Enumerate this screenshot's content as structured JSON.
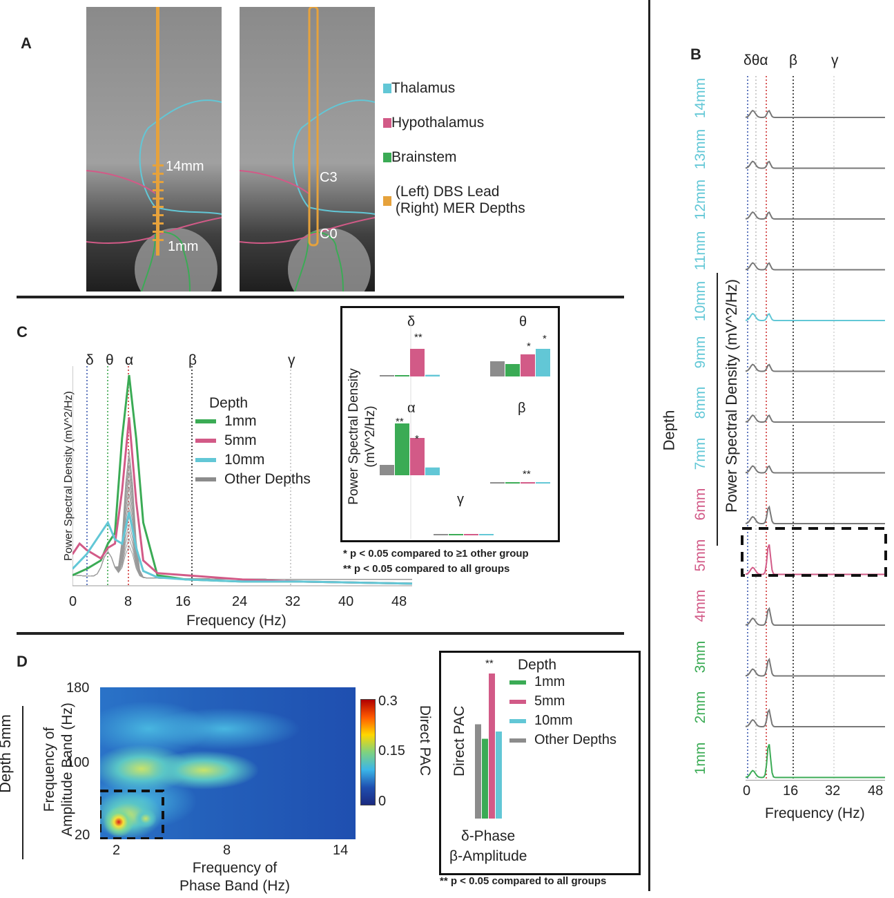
{
  "panels": {
    "a": {
      "letter": "A",
      "legend": [
        {
          "label": "Thalamus",
          "color": "#62c7d6"
        },
        {
          "label": "Hypothalamus",
          "color": "#d25a87"
        },
        {
          "label": "Brainstem",
          "color": "#3bab55"
        },
        {
          "label": "(Left) DBS Lead",
          "color": "#e6a23c"
        },
        {
          "label": "(Right) MER Depths",
          "color": "#e6a23c"
        }
      ],
      "left_image": {
        "top_depth": "14mm",
        "bottom_depth": "1mm"
      },
      "right_image": {
        "top_contact": "C3",
        "bottom_contact": "C0"
      }
    },
    "b": {
      "letter": "B",
      "band_labels": [
        "δθα",
        "β",
        "γ"
      ],
      "ylabel": "Power Spectral Density (mV^2/Hz)",
      "depth_axis_label": "Depth",
      "xlabel": "Frequency (Hz)",
      "xticks": [
        "0",
        "16",
        "32",
        "48"
      ],
      "depths": [
        {
          "label": "14mm",
          "color": "#62c7d6"
        },
        {
          "label": "13mm",
          "color": "#62c7d6"
        },
        {
          "label": "12mm",
          "color": "#62c7d6"
        },
        {
          "label": "11mm",
          "color": "#62c7d6"
        },
        {
          "label": "10mm",
          "color": "#62c7d6"
        },
        {
          "label": "9mm",
          "color": "#62c7d6"
        },
        {
          "label": "8mm",
          "color": "#62c7d6"
        },
        {
          "label": "7mm",
          "color": "#62c7d6"
        },
        {
          "label": "6mm",
          "color": "#d25a87"
        },
        {
          "label": "5mm",
          "color": "#d25a87"
        },
        {
          "label": "4mm",
          "color": "#d25a87"
        },
        {
          "label": "3mm",
          "color": "#3bab55"
        },
        {
          "label": "2mm",
          "color": "#3bab55"
        },
        {
          "label": "1mm",
          "color": "#3bab55"
        }
      ]
    },
    "c": {
      "letter": "C",
      "ylabel": "Power Spectral Density (mV^2/Hz)",
      "xlabel": "Frequency (Hz)",
      "xticks": [
        "0",
        "8",
        "16",
        "24",
        "32",
        "40",
        "48"
      ],
      "band_labels": [
        "δ",
        "θ",
        "α",
        "β",
        "γ"
      ],
      "legend_title": "Depth",
      "legend": [
        {
          "label": "1mm",
          "color": "#3bab55"
        },
        {
          "label": "5mm",
          "color": "#d25a87"
        },
        {
          "label": "10mm",
          "color": "#62c7d6"
        },
        {
          "label": "Other Depths",
          "color": "#8c8c8c"
        }
      ],
      "inset": {
        "ylabel_line1": "Power Spectral Density",
        "ylabel_line2": "(mV^2/Hz)",
        "band_titles": [
          "δ",
          "θ",
          "α",
          "β",
          "γ"
        ],
        "sig_marks": [
          "**",
          "*",
          "*",
          "**",
          "*",
          "**"
        ],
        "footnote1": "* p < 0.05 compared to ≥1 other group",
        "footnote2": "** p < 0.05 compared to all groups"
      }
    },
    "d": {
      "letter": "D",
      "ylabel_top": "Depth 5mm",
      "ylabel_1": "Frequency of",
      "ylabel_2": "Amplitude Band (Hz)",
      "yticks": [
        "180",
        "100",
        "20"
      ],
      "xlabel_1": "Frequency of",
      "xlabel_2": "Phase Band (Hz)",
      "xticks": [
        "2",
        "8",
        "14"
      ],
      "colorbar_ticks": [
        "0.3",
        "0.15",
        "0"
      ],
      "colorbar_label": "Direct PAC",
      "bar_inset": {
        "ylabel": "Direct PAC",
        "sig_mark": "**",
        "legend_title": "Depth",
        "legend": [
          {
            "label": "1mm",
            "color": "#3bab55"
          },
          {
            "label": "5mm",
            "color": "#d25a87"
          },
          {
            "label": "10mm",
            "color": "#62c7d6"
          },
          {
            "label": "Other Depths",
            "color": "#8c8c8c"
          }
        ],
        "xlabel_1": "δ-Phase",
        "xlabel_2": "β-Amplitude",
        "footnote": "** p < 0.05 compared to all groups"
      }
    }
  },
  "chart_data": [
    {
      "type": "line",
      "panel": "C",
      "title": "",
      "xlabel": "Frequency (Hz)",
      "ylabel": "Power Spectral Density (mV^2/Hz)",
      "xlim": [
        0,
        48
      ],
      "bands_hz": {
        "δ": 2,
        "θ": 5,
        "α": 8,
        "β": 17,
        "γ": 31
      },
      "series": [
        {
          "name": "1mm",
          "x": [
            0,
            2,
            4,
            5,
            6,
            7,
            8,
            9,
            10,
            12,
            16,
            24,
            32,
            48
          ],
          "y": [
            0.05,
            0.08,
            0.12,
            0.2,
            0.25,
            0.7,
            1.0,
            0.7,
            0.3,
            0.05,
            0.03,
            0.02,
            0.02,
            0.01
          ]
        },
        {
          "name": "5mm",
          "x": [
            0,
            1,
            2,
            4,
            5,
            6,
            7,
            8,
            9,
            10,
            12,
            16,
            24,
            32,
            48
          ],
          "y": [
            0.15,
            0.2,
            0.17,
            0.13,
            0.18,
            0.2,
            0.45,
            0.8,
            0.4,
            0.12,
            0.06,
            0.05,
            0.03,
            0.02,
            0.01
          ]
        },
        {
          "name": "10mm",
          "x": [
            0,
            2,
            4,
            5,
            6,
            7,
            8,
            9,
            10,
            12,
            16,
            24,
            32,
            48
          ],
          "y": [
            0.08,
            0.15,
            0.25,
            0.3,
            0.22,
            0.2,
            0.35,
            0.18,
            0.07,
            0.04,
            0.03,
            0.02,
            0.02,
            0.01
          ]
        }
      ]
    },
    {
      "type": "bar",
      "panel": "C inset",
      "categories": [
        "Other Depths",
        "1mm",
        "5mm",
        "10mm"
      ],
      "series": [
        {
          "name": "δ",
          "values": [
            0.05,
            0.04,
            1.0,
            0.06
          ]
        },
        {
          "name": "θ",
          "values": [
            0.55,
            0.45,
            0.8,
            1.0
          ]
        },
        {
          "name": "α",
          "values": [
            0.2,
            1.0,
            0.72,
            0.15
          ]
        },
        {
          "name": "β",
          "values": [
            0.02,
            0.05,
            0.1,
            0.02
          ]
        },
        {
          "name": "γ",
          "values": [
            0.02,
            0.02,
            0.02,
            0.02
          ]
        }
      ]
    },
    {
      "type": "heatmap",
      "panel": "D",
      "xlabel": "Frequency of Phase Band (Hz)",
      "ylabel": "Frequency of Amplitude Band (Hz)",
      "xlim": [
        1,
        15
      ],
      "ylim": [
        20,
        180
      ],
      "colorbar_range": [
        0,
        0.3
      ],
      "hotspots": [
        {
          "x": 2,
          "y": 30,
          "value": 0.3
        },
        {
          "x": 3.5,
          "y": 35,
          "value": 0.2
        },
        {
          "x": 4,
          "y": 100,
          "value": 0.14
        },
        {
          "x": 7,
          "y": 100,
          "value": 0.12
        }
      ]
    },
    {
      "type": "bar",
      "panel": "D inset",
      "categories": [
        "Other Depths",
        "1mm",
        "5mm",
        "10mm"
      ],
      "values": [
        0.13,
        0.11,
        0.2,
        0.12
      ],
      "title": "δ-Phase β-Amplitude",
      "ylabel": "Direct PAC"
    }
  ]
}
